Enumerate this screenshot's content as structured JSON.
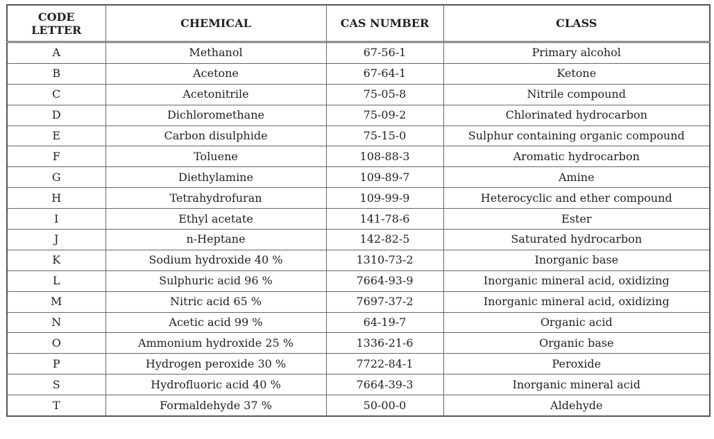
{
  "table": {
    "header": [
      "CODE LETTER",
      "CHEMICAL",
      "CAS NUMBER",
      "CLASS"
    ],
    "rows": [
      [
        "A",
        "Methanol",
        "67-56-1",
        "Primary alcohol"
      ],
      [
        "B",
        "Acetone",
        "67-64-1",
        "Ketone"
      ],
      [
        "C",
        "Acetonitrile",
        "75-05-8",
        "Nitrile compound"
      ],
      [
        "D",
        "Dichloromethane",
        "75-09-2",
        "Chlorinated hydrocarbon"
      ],
      [
        "E",
        "Carbon disulphide",
        "75-15-0",
        "Sulphur containing organic compound"
      ],
      [
        "F",
        "Toluene",
        "108-88-3",
        "Aromatic hydrocarbon"
      ],
      [
        "G",
        "Diethylamine",
        "109-89-7",
        "Amine"
      ],
      [
        "H",
        "Tetrahydrofuran",
        "109-99-9",
        "Heterocyclic and ether compound"
      ],
      [
        "I",
        "Ethyl acetate",
        "141-78-6",
        "Ester"
      ],
      [
        "J",
        "n-Heptane",
        "142-82-5",
        "Saturated hydrocarbon"
      ],
      [
        "K",
        "Sodium hydroxide 40 %",
        "1310-73-2",
        "Inorganic base"
      ],
      [
        "L",
        "Sulphuric acid 96 %",
        "7664-93-9",
        "Inorganic mineral acid, oxidizing"
      ],
      [
        "M",
        "Nitric acid 65 %",
        "7697-37-2",
        "Inorganic mineral acid, oxidizing"
      ],
      [
        "N",
        "Acetic acid 99 %",
        "64-19-7",
        "Organic acid"
      ],
      [
        "O",
        "Ammonium hydroxide 25 %",
        "1336-21-6",
        "Organic base"
      ],
      [
        "P",
        "Hydrogen peroxide 30 %",
        "7722-84-1",
        "Peroxide"
      ],
      [
        "S",
        "Hydrofluoric acid 40 %",
        "7664-39-3",
        "Inorganic mineral acid"
      ],
      [
        "T",
        "Formaldehyde 37 %",
        "50-00-0",
        "Aldehyde"
      ]
    ]
  }
}
